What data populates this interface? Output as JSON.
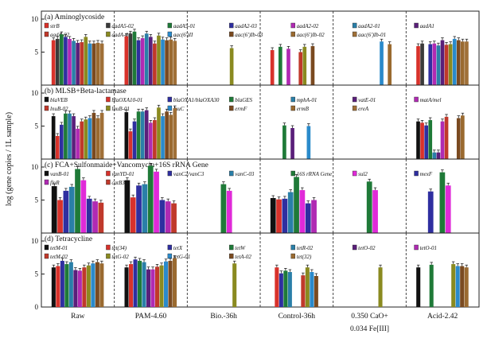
{
  "chart_data": {
    "type": "bar",
    "ylabel": "log (gene copies / 1L sample)",
    "categories": [
      "Raw",
      "PAM-4.60",
      "Bio.-36h",
      "Control-36h",
      "0.350 CaO+ 0.034 Fe[III]",
      "Acid-2.42"
    ],
    "ylim": [
      0,
      10
    ],
    "yticks": [
      0,
      5,
      10
    ],
    "grid": false,
    "panels": [
      {
        "title": "(a) Aminoglycoside",
        "series": [
          {
            "name": "strB",
            "color": "#d8322b",
            "values": [
              6.8,
              7.4,
              null,
              5.3,
              null,
              5.9
            ]
          },
          {
            "name": "aadA5-02",
            "color": "#3a3a3a",
            "values": [
              7.0,
              7.8,
              null,
              null,
              null,
              6.3
            ]
          },
          {
            "name": "aadA5-01",
            "color": "#1f7a38",
            "values": [
              7.7,
              8.1,
              null,
              5.8,
              null,
              null
            ]
          },
          {
            "name": "aadA2-03",
            "color": "#2f2fa0",
            "values": [
              7.3,
              6.8,
              null,
              null,
              null,
              6.2
            ]
          },
          {
            "name": "aadA2-02",
            "color": "#b02ab3",
            "values": [
              7.0,
              7.1,
              null,
              5.5,
              null,
              6.3
            ]
          },
          {
            "name": "aadA2-01",
            "color": "#2a7fa8",
            "values": [
              6.7,
              7.8,
              null,
              null,
              null,
              6.0
            ]
          },
          {
            "name": "aadA1",
            "color": "#5a1f7a",
            "values": [
              6.4,
              7.3,
              null,
              null,
              null,
              6.8
            ]
          },
          {
            "name": "aadA-02",
            "color": "#c0392b",
            "values": [
              6.5,
              6.3,
              null,
              5.0,
              null,
              6.1
            ]
          },
          {
            "name": "aadA-01",
            "color": "#8a8a20",
            "values": [
              7.3,
              7.5,
              5.6,
              5.8,
              null,
              6.2
            ]
          },
          {
            "name": "aac(6')II",
            "color": "#2a8acb",
            "values": [
              6.3,
              6.9,
              null,
              null,
              6.6,
              7.0
            ]
          },
          {
            "name": "aac(6')Ib-03",
            "color": "#7a4a20",
            "values": [
              6.3,
              6.8,
              null,
              5.9,
              null,
              6.8
            ]
          },
          {
            "name": "aac(6')Ib-02",
            "color": "#9a6a30",
            "values": [
              6.4,
              6.9,
              null,
              null,
              6.2,
              6.6
            ]
          },
          {
            "name": "aac(6')Ib-01",
            "color": "#a07038",
            "values": [
              6.3,
              6.7,
              null,
              null,
              null,
              6.6
            ]
          }
        ]
      },
      {
        "title": "(b) MLSB+Beta-lactamase",
        "series": [
          {
            "name": "blaVEB",
            "color": "#111111",
            "values": [
              6.5,
              7.1,
              null,
              null,
              null,
              5.7
            ]
          },
          {
            "name": "blaOXA10-01",
            "color": "#d8322b",
            "values": [
              3.5,
              4.2,
              null,
              null,
              null,
              5.5
            ]
          },
          {
            "name": "blaOXA1/blaOXA30",
            "color": "#2f2fa0",
            "values": [
              5.2,
              5.7,
              null,
              null,
              null,
              5.1
            ]
          },
          {
            "name": "blaGES",
            "color": "#1f7a38",
            "values": [
              6.9,
              7.2,
              null,
              5.1,
              null,
              5.9
            ]
          },
          {
            "name": "mphA-01",
            "color": "#2a7fa8",
            "values": [
              6.9,
              7.2,
              null,
              null,
              null,
              1.0
            ]
          },
          {
            "name": "vatE-01",
            "color": "#5a1f7a",
            "values": [
              6.5,
              7.4,
              null,
              4.7,
              null,
              1.0
            ]
          },
          {
            "name": "matA/mel",
            "color": "#b02ab3",
            "values": [
              4.6,
              5.5,
              null,
              null,
              null,
              5.7
            ]
          },
          {
            "name": "lnuB-02",
            "color": "#c0392b",
            "values": [
              5.7,
              5.9,
              null,
              null,
              null,
              6.4
            ]
          },
          {
            "name": "lnuB-01",
            "color": "#8a8a20",
            "values": [
              6.0,
              7.8,
              null,
              null,
              null,
              null
            ]
          },
          {
            "name": "lnuC",
            "color": "#2a8acb",
            "values": [
              6.2,
              6.5,
              null,
              5.0,
              null,
              null
            ]
          },
          {
            "name": "ermF",
            "color": "#7a4a20",
            "values": [
              7.0,
              7.2,
              null,
              null,
              null,
              6.2
            ]
          },
          {
            "name": "ermB",
            "color": "#9a6a30",
            "values": [
              6.2,
              6.7,
              null,
              null,
              null,
              6.6
            ]
          },
          {
            "name": "ereA",
            "color": "#a07038",
            "values": [
              7.0,
              7.7,
              null,
              null,
              null,
              null
            ]
          }
        ]
      },
      {
        "title": "(c) FCA+Sulfonmaide+Vancomycin+16S rRNA Gene",
        "series": [
          {
            "name": "vanB-01",
            "color": "#111111",
            "values": [
              7.1,
              8.0,
              null,
              5.3,
              null,
              null
            ]
          },
          {
            "name": "vanYD-01",
            "color": "#d8322b",
            "values": [
              5.0,
              5.4,
              null,
              5.1,
              null,
              null
            ]
          },
          {
            "name": "vanC2/vanC3",
            "color": "#2f2fa0",
            "values": [
              6.4,
              7.2,
              null,
              5.2,
              null,
              6.3
            ]
          },
          {
            "name": "vanC-03",
            "color": "#2a7fa8",
            "values": [
              7.0,
              7.4,
              null,
              6.2,
              null,
              null
            ]
          },
          {
            "name": "16S rRNA Gene",
            "color": "#1f7a38",
            "values": [
              9.7,
              10.2,
              7.4,
              8.5,
              7.8,
              9.2
            ]
          },
          {
            "name": "sul2",
            "color": "#e02ad8",
            "values": [
              8.0,
              9.3,
              6.4,
              6.5,
              6.5,
              7.2
            ]
          },
          {
            "name": "mexF",
            "color": "#2f2fa0",
            "values": [
              5.2,
              5.0,
              null,
              4.5,
              null,
              null
            ]
          },
          {
            "name": "floR",
            "color": "#b02ab3",
            "values": [
              4.8,
              4.8,
              null,
              5.0,
              null,
              null
            ]
          },
          {
            "name": "catB3",
            "color": "#c0392b",
            "values": [
              4.6,
              4.5,
              null,
              null,
              null,
              null
            ]
          }
        ]
      },
      {
        "title": "(d) Tetracycline",
        "series": [
          {
            "name": "tetM-01",
            "color": "#111111",
            "values": [
              6.0,
              6.0,
              null,
              null,
              null,
              6.0
            ]
          },
          {
            "name": "tet(34)",
            "color": "#d8322b",
            "values": [
              6.2,
              6.5,
              null,
              6.0,
              null,
              null
            ]
          },
          {
            "name": "tetX",
            "color": "#2f2fa0",
            "values": [
              7.0,
              7.2,
              null,
              5.1,
              null,
              null
            ]
          },
          {
            "name": "tetW",
            "color": "#1f7a38",
            "values": [
              6.5,
              7.0,
              null,
              5.5,
              null,
              6.4
            ]
          },
          {
            "name": "tetR-02",
            "color": "#2a7fa8",
            "values": [
              6.8,
              6.8,
              null,
              5.3,
              null,
              null
            ]
          },
          {
            "name": "tetO-02",
            "color": "#5a1f7a",
            "values": [
              5.6,
              5.7,
              null,
              null,
              null,
              null
            ]
          },
          {
            "name": "tetO-01",
            "color": "#b02ab3",
            "values": [
              5.5,
              5.7,
              null,
              null,
              null,
              null
            ]
          },
          {
            "name": "tetM-02",
            "color": "#c0392b",
            "values": [
              6.0,
              6.1,
              null,
              4.8,
              null,
              null
            ]
          },
          {
            "name": "tetG-02",
            "color": "#8a8a20",
            "values": [
              6.3,
              6.3,
              6.6,
              6.0,
              6.0,
              6.5
            ]
          },
          {
            "name": "tetG-01",
            "color": "#2a8acb",
            "values": [
              6.6,
              6.9,
              null,
              5.3,
              null,
              6.2
            ]
          },
          {
            "name": "tetA-02",
            "color": "#7a4a20",
            "values": [
              6.8,
              7.0,
              null,
              4.7,
              null,
              6.2
            ]
          },
          {
            "name": "tet(32)",
            "color": "#9a6a30",
            "values": [
              6.6,
              7.4,
              null,
              null,
              null,
              6.0
            ]
          }
        ]
      }
    ]
  }
}
